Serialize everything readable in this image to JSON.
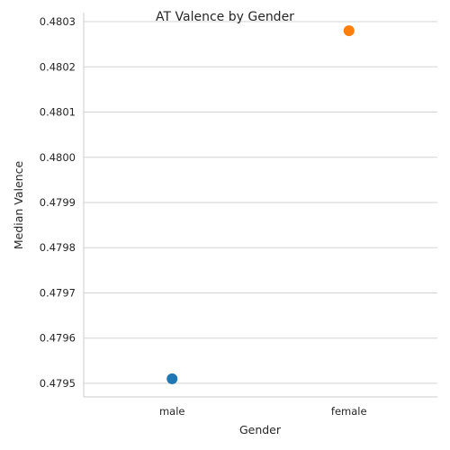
{
  "chart_data": {
    "type": "scatter",
    "title": "AT Valence by Gender",
    "xlabel": "Gender",
    "ylabel": "Median Valence",
    "categories": [
      "male",
      "female"
    ],
    "values": [
      0.47951,
      0.48028
    ],
    "colors": [
      "#1f77b4",
      "#ff7f0e"
    ],
    "ylim": [
      0.47947,
      0.48032
    ],
    "yticks": [
      0.4795,
      0.4796,
      0.4797,
      0.4798,
      0.4799,
      0.48,
      0.4801,
      0.4802,
      0.4803
    ],
    "ytick_labels": [
      "0.4795",
      "0.4796",
      "0.4797",
      "0.4798",
      "0.4799",
      "0.4800",
      "0.4801",
      "0.4802",
      "0.4803"
    ],
    "grid": "horizontal",
    "legend": "none"
  }
}
